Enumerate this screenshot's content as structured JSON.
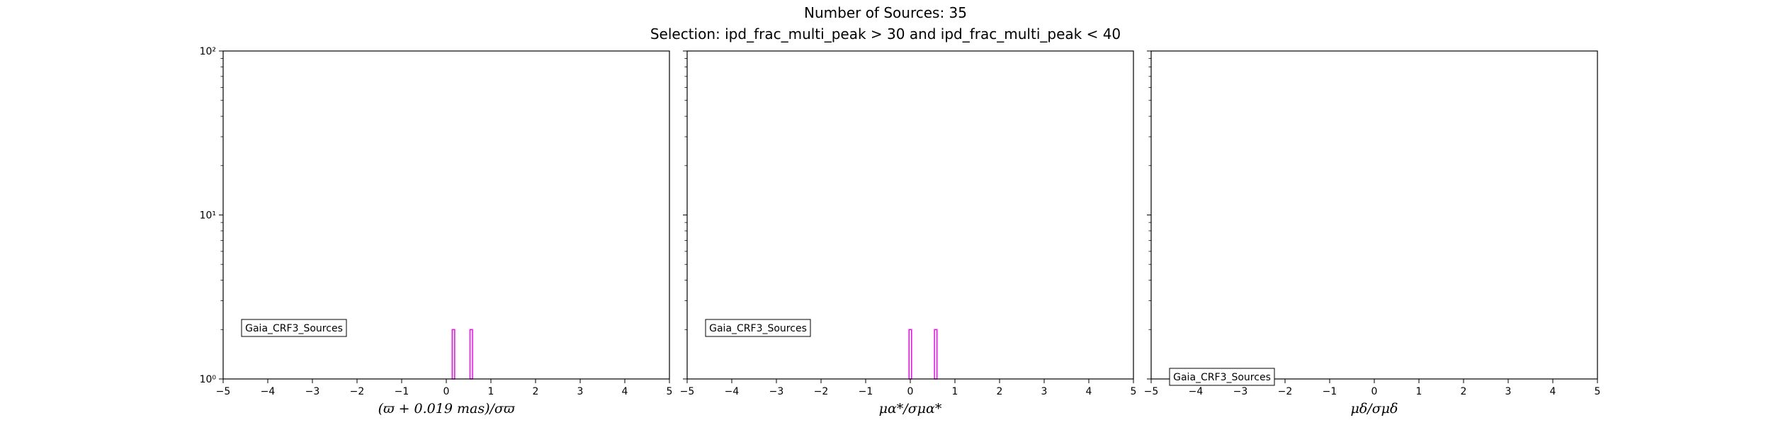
{
  "figure": {
    "title": "Number of Sources: 35",
    "subtitle": "Selection: ipd_frac_multi_peak > 30 and ipd_frac_multi_peak < 40"
  },
  "chart_data": [
    {
      "type": "histogram",
      "xlabel": "(ϖ + 0.019 mas)/σϖ",
      "xlim": [
        -5,
        5
      ],
      "ylim": [
        1,
        100
      ],
      "yscale": "log",
      "x_ticks": [
        "−5",
        "−4",
        "−3",
        "−2",
        "−1",
        "0",
        "1",
        "2",
        "3",
        "4",
        "5"
      ],
      "y_ticks": [
        "10⁰",
        "10¹",
        "10²"
      ],
      "legend": {
        "label": "Gaia_CRF3_Sources",
        "placement": "lower-left"
      },
      "color": "#ff00ff",
      "bars": [
        {
          "x": 0.16,
          "count": 2
        },
        {
          "x": 0.56,
          "count": 2
        }
      ]
    },
    {
      "type": "histogram",
      "xlabel": "μα*/σμα*",
      "xlim": [
        -5,
        5
      ],
      "ylim": [
        1,
        100
      ],
      "yscale": "log",
      "x_ticks": [
        "−5",
        "−4",
        "−3",
        "−2",
        "−1",
        "0",
        "1",
        "2",
        "3",
        "4",
        "5"
      ],
      "y_ticks": [],
      "legend": {
        "label": "Gaia_CRF3_Sources",
        "placement": "lower-left"
      },
      "color": "#ff00ff",
      "bars": [
        {
          "x": 0.0,
          "count": 2
        },
        {
          "x": 0.57,
          "count": 2
        }
      ]
    },
    {
      "type": "histogram",
      "xlabel": "μδ/σμδ",
      "xlim": [
        -5,
        5
      ],
      "ylim": [
        1,
        100
      ],
      "yscale": "log",
      "x_ticks": [
        "−5",
        "−4",
        "−3",
        "−2",
        "−1",
        "0",
        "1",
        "2",
        "3",
        "4",
        "5"
      ],
      "y_ticks": [],
      "legend": {
        "label": "Gaia_CRF3_Sources",
        "placement": "lower-left"
      },
      "color": "#ff00ff",
      "bars": []
    }
  ]
}
